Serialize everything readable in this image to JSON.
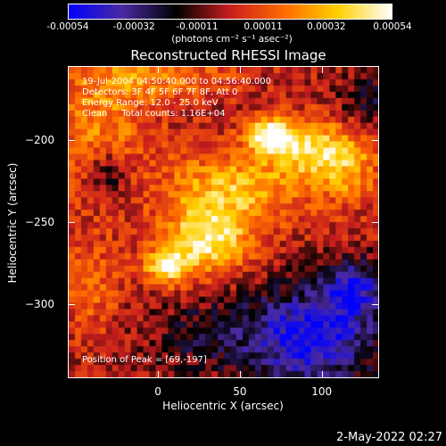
{
  "chart_data": {
    "type": "heatmap",
    "title": "Reconstructed RHESSI Image",
    "xlabel": "Heliocentric X (arcsec)",
    "ylabel": "Heliocentric Y (arcsec)",
    "xlim": [
      -55,
      135
    ],
    "ylim": [
      -345,
      -155
    ],
    "x_ticks": [
      "0",
      "50",
      "100"
    ],
    "x_tick_values": [
      0,
      50,
      100
    ],
    "y_ticks": [
      "-200",
      "-250",
      "-300"
    ],
    "y_tick_values": [
      -200,
      -250,
      -300
    ],
    "colorbar": {
      "labels": [
        "-0.00054",
        "-0.00032",
        "-0.00011",
        "0.00011",
        "0.00032",
        "0.00054"
      ],
      "values": [
        -0.00054,
        -0.00032,
        -0.00011,
        0.00011,
        0.00032,
        0.00054
      ],
      "units": "(photons cm⁻² s⁻¹ asec⁻²)",
      "colormap": [
        "#0000ff",
        "#4a2aa0",
        "#000000",
        "#c81e1e",
        "#ff6a00",
        "#ffd000",
        "#ffffff"
      ]
    },
    "annotations": {
      "time_range": "19-Jul-2004 04:50:40.000 to 04:56:40.000",
      "detectors": "Detectors: 3F 4F 5F 6F 7F 8F, Att 0",
      "energy": "Energy Range: 12.0 - 25.0 keV",
      "clean": "Clean     Total counts: 1.16E+04",
      "peak": "Position of Peak = [69,-197]"
    },
    "peak": {
      "x": 69,
      "y": -197,
      "value": 0.00054
    },
    "sources": [
      {
        "x": 69,
        "y": -197,
        "sx": 10,
        "sy": 7,
        "value": 0.00054
      },
      {
        "x": 30,
        "y": -262,
        "sx": 18,
        "sy": 14,
        "value": 0.00046
      },
      {
        "x": 5,
        "y": -278,
        "sx": 10,
        "sy": 8,
        "value": 0.0004
      },
      {
        "x": 45,
        "y": -230,
        "sx": 28,
        "sy": 16,
        "value": 0.00034
      },
      {
        "x": 115,
        "y": -215,
        "sx": 14,
        "sy": 16,
        "value": 0.0003
      },
      {
        "x": 90,
        "y": -205,
        "sx": 16,
        "sy": 12,
        "value": 0.00036
      },
      {
        "x": -35,
        "y": -190,
        "sx": 22,
        "sy": 30,
        "value": 0.00022
      },
      {
        "x": 0,
        "y": -160,
        "sx": 30,
        "sy": 10,
        "value": 0.0002
      },
      {
        "x": -40,
        "y": -290,
        "sx": 12,
        "sy": 20,
        "value": 0.00016
      },
      {
        "x": 95,
        "y": -320,
        "sx": 28,
        "sy": 22,
        "value": -0.0005
      },
      {
        "x": 120,
        "y": -290,
        "sx": 12,
        "sy": 12,
        "value": -0.0004
      },
      {
        "x": -30,
        "y": -220,
        "sx": 10,
        "sy": 10,
        "value": -0.00026
      },
      {
        "x": 130,
        "y": -175,
        "sx": 14,
        "sy": 14,
        "value": -0.0002
      },
      {
        "x": 30,
        "y": -320,
        "sx": 30,
        "sy": 18,
        "value": -0.00018
      }
    ],
    "timestamp": "2-May-2022 02:27"
  }
}
